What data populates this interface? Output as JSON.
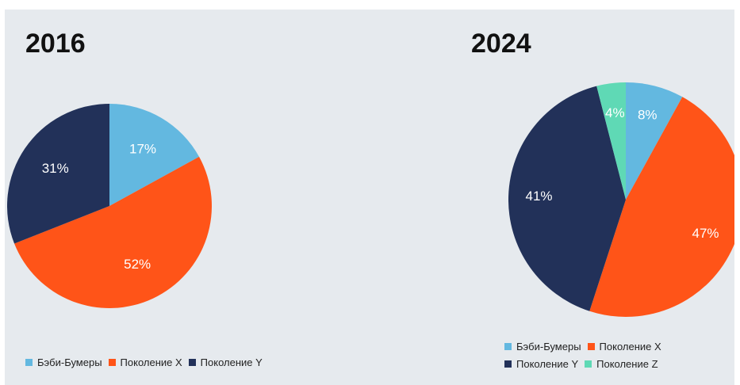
{
  "colors": {
    "boomers": "#63b8e0",
    "gen_x": "#ff5418",
    "gen_y": "#223159",
    "gen_z": "#5fd9b5"
  },
  "chart_data": [
    {
      "type": "pie",
      "title": "2016",
      "series": [
        {
          "name": "Бэби-Бумеры",
          "label": "17%",
          "value": 17,
          "color": "#63b8e0"
        },
        {
          "name": "Поколение X",
          "label": "52%",
          "value": 52,
          "color": "#ff5418"
        },
        {
          "name": "Поколение Y",
          "label": "31%",
          "value": 31,
          "color": "#223159"
        }
      ],
      "legend": [
        "Бэби-Бумеры",
        "Поколение X",
        "Поколение Y"
      ],
      "legend_position": "bottom-left"
    },
    {
      "type": "pie",
      "title": "2024",
      "series": [
        {
          "name": "Бэби-Бумеры",
          "label": "8%",
          "value": 8,
          "color": "#63b8e0"
        },
        {
          "name": "Поколение X",
          "label": "47%",
          "value": 47,
          "color": "#ff5418"
        },
        {
          "name": "Поколение Y",
          "label": "41%",
          "value": 41,
          "color": "#223159"
        },
        {
          "name": "Поколение Z",
          "label": "4%",
          "value": 4,
          "color": "#5fd9b5"
        }
      ],
      "legend": [
        "Бэби-Бумеры",
        "Поколение X",
        "Поколение Y",
        "Поколение Z"
      ],
      "legend_position": "bottom-right"
    }
  ]
}
